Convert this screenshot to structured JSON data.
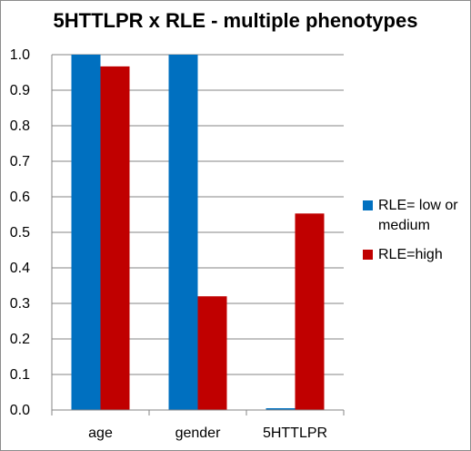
{
  "chart_data": {
    "type": "bar",
    "title": "5HTTLPR x RLE - multiple phenotypes",
    "categories": [
      "age",
      "gender",
      "5HTTLPR"
    ],
    "series": [
      {
        "name": "RLE= low or medium",
        "legend_lines": [
          "RLE= low or",
          "medium"
        ],
        "color": "#0070C0",
        "values": [
          1.0,
          1.0,
          0.005
        ]
      },
      {
        "name": "RLE=high",
        "legend_lines": [
          "RLE=high"
        ],
        "color": "#C00000",
        "values": [
          0.967,
          0.32,
          0.553
        ]
      }
    ],
    "ylim": [
      0,
      1.0
    ],
    "yticks": [
      "0.0",
      "0.1",
      "0.2",
      "0.3",
      "0.4",
      "0.5",
      "0.6",
      "0.7",
      "0.8",
      "0.9",
      "1.0"
    ],
    "xlabel": "",
    "ylabel": "",
    "grid": true,
    "gridline_color": "#868686",
    "legend_position": "right"
  }
}
